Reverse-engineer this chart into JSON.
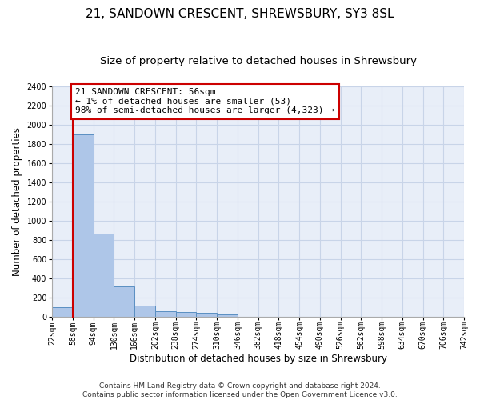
{
  "title": "21, SANDOWN CRESCENT, SHREWSBURY, SY3 8SL",
  "subtitle": "Size of property relative to detached houses in Shrewsbury",
  "xlabel": "Distribution of detached houses by size in Shrewsbury",
  "ylabel": "Number of detached properties",
  "footer_line1": "Contains HM Land Registry data © Crown copyright and database right 2024.",
  "footer_line2": "Contains public sector information licensed under the Open Government Licence v3.0.",
  "bin_labels": [
    "22sqm",
    "58sqm",
    "94sqm",
    "130sqm",
    "166sqm",
    "202sqm",
    "238sqm",
    "274sqm",
    "310sqm",
    "346sqm",
    "382sqm",
    "418sqm",
    "454sqm",
    "490sqm",
    "526sqm",
    "562sqm",
    "598sqm",
    "634sqm",
    "670sqm",
    "706sqm",
    "742sqm"
  ],
  "bar_values": [
    100,
    1900,
    860,
    315,
    115,
    58,
    50,
    38,
    22,
    0,
    0,
    0,
    0,
    0,
    0,
    0,
    0,
    0,
    0,
    0
  ],
  "bar_color": "#aec6e8",
  "bar_edge_color": "#5a8fc2",
  "annotation_line1": "21 SANDOWN CRESCENT: 56sqm",
  "annotation_line2": "← 1% of detached houses are smaller (53)",
  "annotation_line3": "98% of semi-detached houses are larger (4,323) →",
  "annotation_box_color": "#cc0000",
  "property_line_x": 1,
  "ylim": [
    0,
    2400
  ],
  "yticks": [
    0,
    200,
    400,
    600,
    800,
    1000,
    1200,
    1400,
    1600,
    1800,
    2000,
    2200,
    2400
  ],
  "grid_color": "#c8d4e8",
  "bg_color": "#e8eef8",
  "title_fontsize": 11,
  "subtitle_fontsize": 9.5,
  "label_fontsize": 8.5,
  "tick_fontsize": 7,
  "footer_fontsize": 6.5,
  "annotation_fontsize": 8
}
